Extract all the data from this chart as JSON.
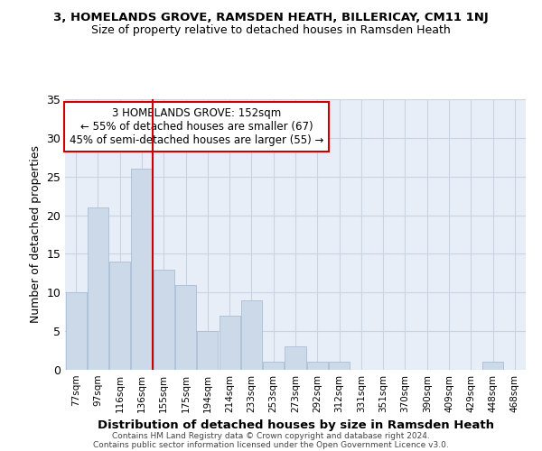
{
  "title1": "3, HOMELANDS GROVE, RAMSDEN HEATH, BILLERICAY, CM11 1NJ",
  "title2": "Size of property relative to detached houses in Ramsden Heath",
  "xlabel": "Distribution of detached houses by size in Ramsden Heath",
  "ylabel": "Number of detached properties",
  "categories": [
    "77sqm",
    "97sqm",
    "116sqm",
    "136sqm",
    "155sqm",
    "175sqm",
    "194sqm",
    "214sqm",
    "233sqm",
    "253sqm",
    "273sqm",
    "292sqm",
    "312sqm",
    "331sqm",
    "351sqm",
    "370sqm",
    "390sqm",
    "409sqm",
    "429sqm",
    "448sqm",
    "468sqm"
  ],
  "values": [
    10,
    21,
    14,
    26,
    13,
    11,
    5,
    7,
    9,
    1,
    3,
    1,
    1,
    0,
    0,
    0,
    0,
    0,
    0,
    1,
    0
  ],
  "bar_color": "#ccd9e8",
  "bar_edgecolor": "#aabdd4",
  "vline_index": 4,
  "vline_color": "#cc0000",
  "annotation_title": "3 HOMELANDS GROVE: 152sqm",
  "annotation_line1": "← 55% of detached houses are smaller (67)",
  "annotation_line2": "45% of semi-detached houses are larger (55) →",
  "annotation_box_edgecolor": "#cc0000",
  "ylim": [
    0,
    35
  ],
  "yticks": [
    0,
    5,
    10,
    15,
    20,
    25,
    30,
    35
  ],
  "grid_color": "#c8d4e4",
  "bg_color": "#e8eef8",
  "footer1": "Contains HM Land Registry data © Crown copyright and database right 2024.",
  "footer2": "Contains public sector information licensed under the Open Government Licence v3.0."
}
